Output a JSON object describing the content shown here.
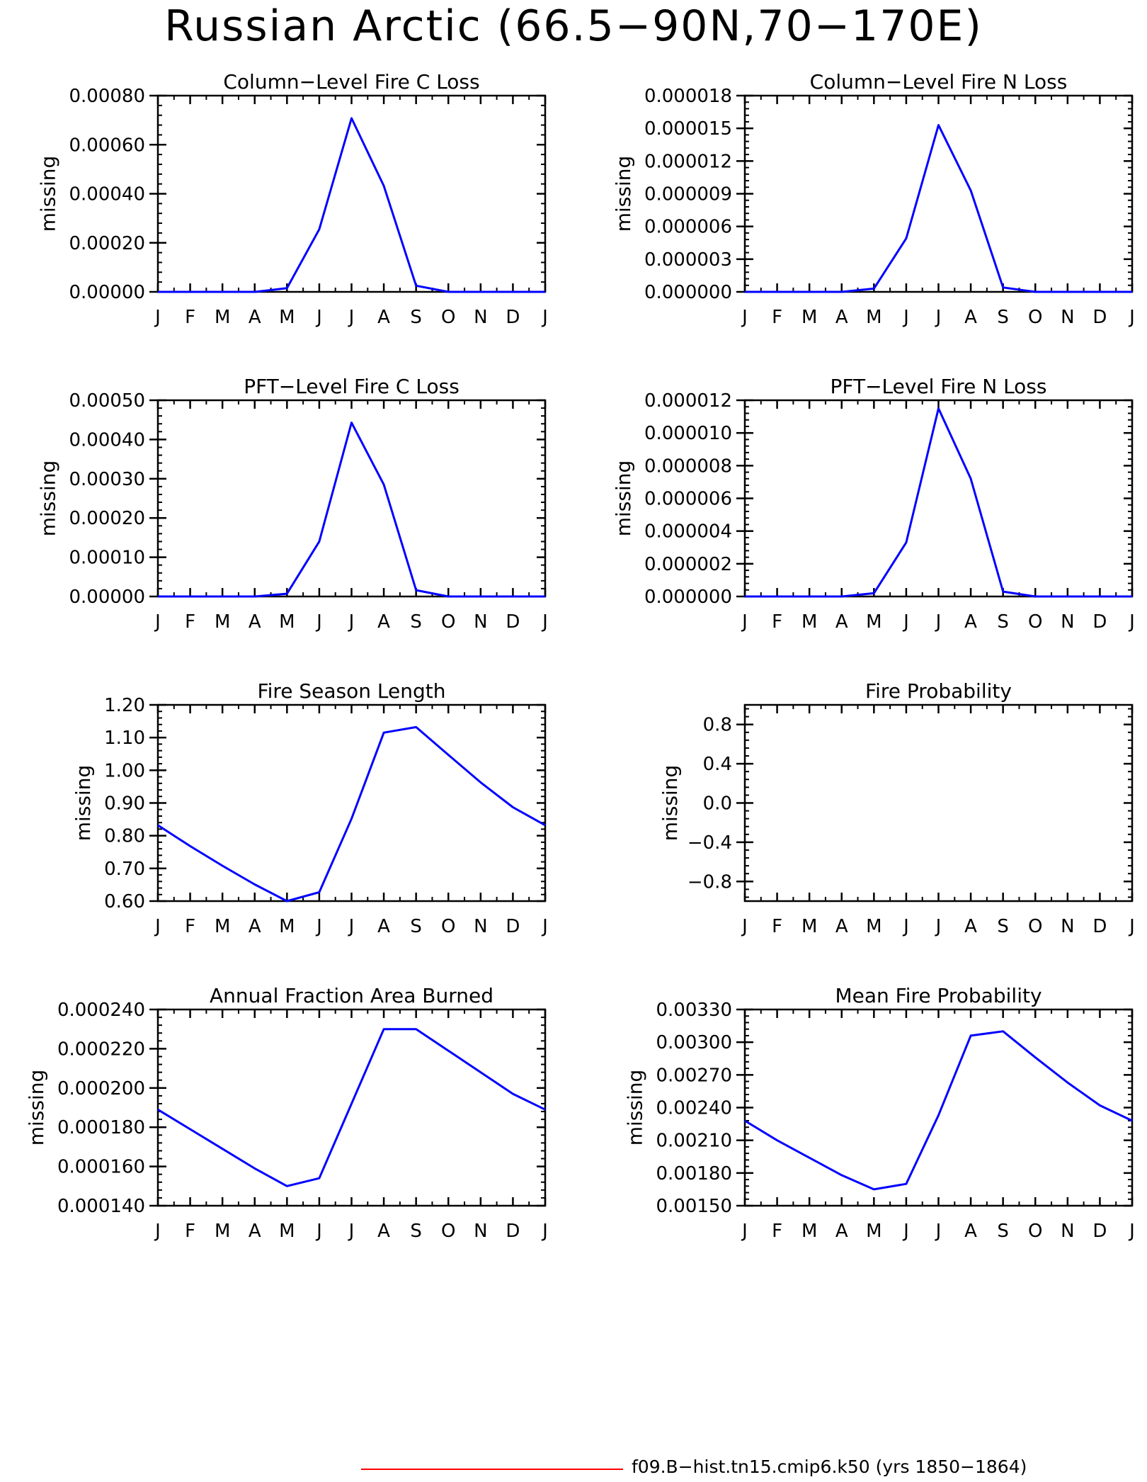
{
  "title": "Russian Arctic (66.5−90N,70−170E)",
  "legend": {
    "label": "f09.B−hist.tn15.cmip6.k50 (yrs 1850−1864)",
    "color": "#ff0000"
  },
  "chart_data": [
    {
      "type": "line",
      "title": "Column−Level Fire C Loss",
      "ylabel": "missing",
      "x": [
        "J",
        "F",
        "M",
        "A",
        "M",
        "J",
        "J",
        "A",
        "S",
        "O",
        "N",
        "D",
        "J"
      ],
      "ylim": [
        0,
        0.0008
      ],
      "yticks": [
        "0.00000",
        "0.00020",
        "0.00040",
        "0.00060",
        "0.00080"
      ],
      "ytick_values": [
        0,
        0.0002,
        0.0004,
        0.0006,
        0.0008
      ],
      "series": [
        {
          "color": "#0000ff",
          "values": [
            0,
            0,
            0,
            0,
            1.5e-05,
            0.000255,
            0.000708,
            0.000432,
            2.5e-05,
            0,
            0,
            0,
            0
          ]
        }
      ]
    },
    {
      "type": "line",
      "title": "Column−Level Fire N Loss",
      "ylabel": "missing",
      "x": [
        "J",
        "F",
        "M",
        "A",
        "M",
        "J",
        "J",
        "A",
        "S",
        "O",
        "N",
        "D",
        "J"
      ],
      "ylim": [
        0,
        1.8e-05
      ],
      "yticks": [
        "0.000000",
        "0.000003",
        "0.000006",
        "0.000009",
        "0.000012",
        "0.000015",
        "0.000018"
      ],
      "ytick_values": [
        0,
        3e-06,
        6e-06,
        9e-06,
        1.2e-05,
        1.5e-05,
        1.8e-05
      ],
      "series": [
        {
          "color": "#0000ff",
          "values": [
            0,
            0,
            0,
            0,
            3e-07,
            4.9e-06,
            1.53e-05,
            9.3e-06,
            4e-07,
            0,
            0,
            0,
            0
          ]
        }
      ]
    },
    {
      "type": "line",
      "title": "PFT−Level Fire C Loss",
      "ylabel": "missing",
      "x": [
        "J",
        "F",
        "M",
        "A",
        "M",
        "J",
        "J",
        "A",
        "S",
        "O",
        "N",
        "D",
        "J"
      ],
      "ylim": [
        0,
        0.0005
      ],
      "yticks": [
        "0.00000",
        "0.00010",
        "0.00020",
        "0.00030",
        "0.00040",
        "0.00050"
      ],
      "ytick_values": [
        0,
        0.0001,
        0.0002,
        0.0003,
        0.0004,
        0.0005
      ],
      "series": [
        {
          "color": "#0000ff",
          "values": [
            0,
            0,
            0,
            0,
            7e-06,
            0.00014,
            0.000443,
            0.000285,
            1.6e-05,
            0,
            0,
            0,
            0
          ]
        }
      ]
    },
    {
      "type": "line",
      "title": "PFT−Level Fire N Loss",
      "ylabel": "missing",
      "x": [
        "J",
        "F",
        "M",
        "A",
        "M",
        "J",
        "J",
        "A",
        "S",
        "O",
        "N",
        "D",
        "J"
      ],
      "ylim": [
        0,
        1.2e-05
      ],
      "yticks": [
        "0.000000",
        "0.000002",
        "0.000004",
        "0.000006",
        "0.000008",
        "0.000010",
        "0.000012"
      ],
      "ytick_values": [
        0,
        2e-06,
        4e-06,
        6e-06,
        8e-06,
        1e-05,
        1.2e-05
      ],
      "series": [
        {
          "color": "#0000ff",
          "values": [
            0,
            0,
            0,
            0,
            2e-07,
            3.3e-06,
            1.15e-05,
            7.2e-06,
            3e-07,
            0,
            0,
            0,
            0
          ]
        }
      ]
    },
    {
      "type": "line",
      "title": "Fire Season Length",
      "ylabel": "missing",
      "x": [
        "J",
        "F",
        "M",
        "A",
        "M",
        "J",
        "J",
        "A",
        "S",
        "O",
        "N",
        "D",
        "J"
      ],
      "ylim": [
        0.6,
        1.2
      ],
      "yticks": [
        "0.60",
        "0.70",
        "0.80",
        "0.90",
        "1.00",
        "1.10",
        "1.20"
      ],
      "ytick_values": [
        0.6,
        0.7,
        0.8,
        0.9,
        1.0,
        1.1,
        1.2
      ],
      "series": [
        {
          "color": "#0000ff",
          "values": [
            0.832,
            0.768,
            0.708,
            0.651,
            0.6,
            0.627,
            0.852,
            1.115,
            1.132,
            1.047,
            0.963,
            0.887,
            0.832
          ]
        }
      ]
    },
    {
      "type": "line",
      "title": "Fire Probability",
      "ylabel": "missing",
      "x": [
        "J",
        "F",
        "M",
        "A",
        "M",
        "J",
        "J",
        "A",
        "S",
        "O",
        "N",
        "D",
        "J"
      ],
      "ylim": [
        -1.0,
        1.0
      ],
      "yticks": [
        "−0.8",
        "−0.4",
        "0.0",
        "0.4",
        "0.8"
      ],
      "ytick_values": [
        -0.8,
        -0.4,
        0.0,
        0.4,
        0.8
      ],
      "series": []
    },
    {
      "type": "line",
      "title": "Annual Fraction Area Burned",
      "ylabel": "missing",
      "x": [
        "J",
        "F",
        "M",
        "A",
        "M",
        "J",
        "J",
        "A",
        "S",
        "O",
        "N",
        "D",
        "J"
      ],
      "ylim": [
        0.00014,
        0.00024
      ],
      "yticks": [
        "0.000140",
        "0.000160",
        "0.000180",
        "0.000200",
        "0.000220",
        "0.000240"
      ],
      "ytick_values": [
        0.00014,
        0.00016,
        0.00018,
        0.0002,
        0.00022,
        0.00024
      ],
      "series": [
        {
          "color": "#0000ff",
          "values": [
            0.000189,
            0.000179,
            0.000169,
            0.000159,
            0.00015,
            0.000154,
            0.000192,
            0.00023,
            0.00023,
            0.000219,
            0.000208,
            0.000197,
            0.000189
          ]
        }
      ]
    },
    {
      "type": "line",
      "title": "Mean Fire Probability",
      "ylabel": "missing",
      "x": [
        "J",
        "F",
        "M",
        "A",
        "M",
        "J",
        "J",
        "A",
        "S",
        "O",
        "N",
        "D",
        "J"
      ],
      "ylim": [
        0.0015,
        0.0033
      ],
      "yticks": [
        "0.00150",
        "0.00180",
        "0.00210",
        "0.00240",
        "0.00270",
        "0.00300",
        "0.00330"
      ],
      "ytick_values": [
        0.0015,
        0.0018,
        0.0021,
        0.0024,
        0.0027,
        0.003,
        0.0033
      ],
      "series": [
        {
          "color": "#0000ff",
          "values": [
            0.00228,
            0.0021,
            0.00194,
            0.00178,
            0.00165,
            0.0017,
            0.00233,
            0.00306,
            0.0031,
            0.00286,
            0.00263,
            0.00242,
            0.00228
          ]
        }
      ]
    }
  ]
}
